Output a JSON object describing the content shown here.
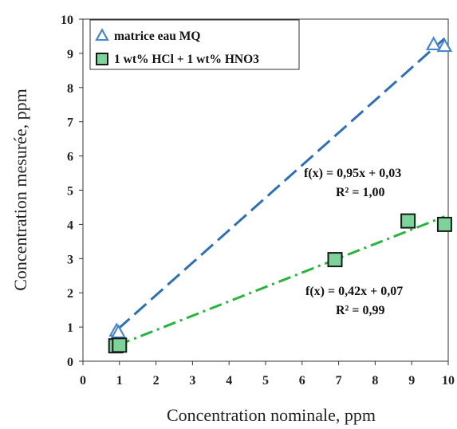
{
  "chart_data": {
    "type": "scatter",
    "xlabel": "Concentration nominale, ppm",
    "ylabel": "Concentration mesurée, ppm",
    "xlim": [
      0,
      10
    ],
    "ylim": [
      0,
      10
    ],
    "xticks": [
      "0",
      "1",
      "2",
      "3",
      "4",
      "5",
      "6",
      "7",
      "8",
      "9",
      "10"
    ],
    "yticks": [
      "0",
      "1",
      "2",
      "3",
      "4",
      "5",
      "6",
      "7",
      "8",
      "9",
      "10"
    ],
    "grid": false,
    "legend_position": "top-left",
    "series": [
      {
        "name": "matrice eau  MQ",
        "marker": "triangle",
        "color": "#4a86c8",
        "fill": "#ffffff",
        "line_style": "dashed",
        "line_color": "#2e6fb5",
        "points": [
          {
            "x": 0.92,
            "y": 0.88
          },
          {
            "x": 0.97,
            "y": 0.83
          },
          {
            "x": 9.6,
            "y": 9.25
          },
          {
            "x": 9.9,
            "y": 9.2
          }
        ],
        "fit": {
          "slope": 0.95,
          "intercept": 0.03,
          "x_range": [
            0.95,
            9.9
          ]
        },
        "equation": "f(x) = 0,95x + 0,03",
        "r2": "R² = 1,00"
      },
      {
        "name": "1 wt% HCl + 1 wt% HNO3",
        "marker": "square",
        "color": "#1a1a1a",
        "fill": "#7dd39a",
        "line_style": "dashdot",
        "line_color": "#27b53f",
        "points": [
          {
            "x": 0.9,
            "y": 0.45
          },
          {
            "x": 1.0,
            "y": 0.47
          },
          {
            "x": 6.9,
            "y": 2.97
          },
          {
            "x": 8.9,
            "y": 4.1
          },
          {
            "x": 9.9,
            "y": 4.0
          }
        ],
        "fit": {
          "slope": 0.42,
          "intercept": 0.07,
          "x_range": [
            0.95,
            9.9
          ]
        },
        "equation": "f(x) = 0,42x + 0,07",
        "r2": "R² = 0,99"
      }
    ]
  }
}
